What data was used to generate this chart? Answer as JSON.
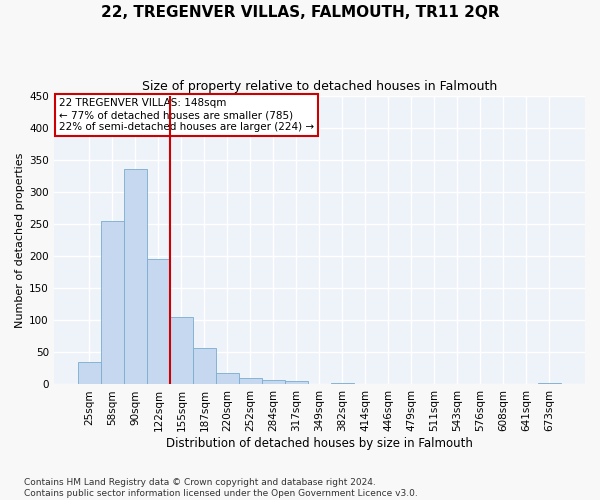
{
  "title": "22, TREGENVER VILLAS, FALMOUTH, TR11 2QR",
  "subtitle": "Size of property relative to detached houses in Falmouth",
  "xlabel": "Distribution of detached houses by size in Falmouth",
  "ylabel": "Number of detached properties",
  "categories": [
    "25sqm",
    "58sqm",
    "90sqm",
    "122sqm",
    "155sqm",
    "187sqm",
    "220sqm",
    "252sqm",
    "284sqm",
    "317sqm",
    "349sqm",
    "382sqm",
    "414sqm",
    "446sqm",
    "479sqm",
    "511sqm",
    "543sqm",
    "576sqm",
    "608sqm",
    "641sqm",
    "673sqm"
  ],
  "values": [
    35,
    255,
    335,
    195,
    105,
    57,
    18,
    10,
    7,
    5,
    0,
    3,
    0,
    0,
    0,
    0,
    0,
    0,
    0,
    0,
    3
  ],
  "bar_color": "#c5d8f0",
  "bar_edge_color": "#7aacce",
  "vline_color": "#cc0000",
  "vline_pos": 3.5,
  "annotation_text": "22 TREGENVER VILLAS: 148sqm\n← 77% of detached houses are smaller (785)\n22% of semi-detached houses are larger (224) →",
  "annotation_box_color": "#ffffff",
  "annotation_box_edge": "#cc0000",
  "ylim": [
    0,
    450
  ],
  "yticks": [
    0,
    50,
    100,
    150,
    200,
    250,
    300,
    350,
    400,
    450
  ],
  "bg_color": "#eef2f9",
  "grid_color": "#ffffff",
  "fig_bg_color": "#f8f8f8",
  "footer": "Contains HM Land Registry data © Crown copyright and database right 2024.\nContains public sector information licensed under the Open Government Licence v3.0.",
  "title_fontsize": 11,
  "subtitle_fontsize": 9,
  "xlabel_fontsize": 8.5,
  "ylabel_fontsize": 8,
  "tick_fontsize": 7.5,
  "annotation_fontsize": 7.5,
  "footer_fontsize": 6.5
}
